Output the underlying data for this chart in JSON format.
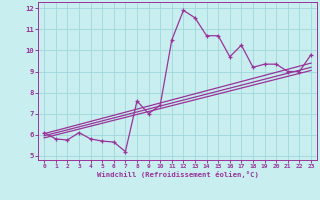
{
  "xlabel": "Windchill (Refroidissement éolien,°C)",
  "bg_color": "#c8eef0",
  "line_color": "#993399",
  "xlim": [
    -0.5,
    23.5
  ],
  "ylim": [
    4.8,
    12.3
  ],
  "xticks": [
    0,
    1,
    2,
    3,
    4,
    5,
    6,
    7,
    8,
    9,
    10,
    11,
    12,
    13,
    14,
    15,
    16,
    17,
    18,
    19,
    20,
    21,
    22,
    23
  ],
  "yticks": [
    5,
    6,
    7,
    8,
    9,
    10,
    11,
    12
  ],
  "main_x": [
    0,
    1,
    2,
    3,
    4,
    5,
    6,
    7,
    8,
    9,
    10,
    11,
    12,
    13,
    14,
    15,
    16,
    17,
    18,
    19,
    20,
    21,
    22,
    23
  ],
  "main_y": [
    6.1,
    5.8,
    5.75,
    6.1,
    5.8,
    5.7,
    5.65,
    5.2,
    7.6,
    7.0,
    7.4,
    10.5,
    11.9,
    11.55,
    10.7,
    10.7,
    9.7,
    10.25,
    9.2,
    9.35,
    9.35,
    9.0,
    9.0,
    9.8
  ],
  "line1_x": [
    0,
    23
  ],
  "line1_y": [
    5.85,
    9.05
  ],
  "line2_x": [
    0,
    23
  ],
  "line2_y": [
    5.95,
    9.2
  ],
  "line3_x": [
    0,
    23
  ],
  "line3_y": [
    6.05,
    9.4
  ],
  "grid_color": "#9fd8dc",
  "marker": "+"
}
